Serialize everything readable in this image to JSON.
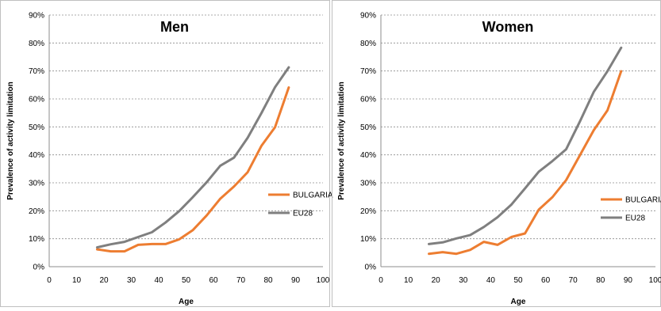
{
  "chart_data": [
    {
      "type": "line",
      "title": "Men",
      "xlabel": "Age",
      "ylabel": "Prevalence of activity limitation",
      "xlim": [
        0,
        100
      ],
      "ylim": [
        0,
        90
      ],
      "xticks": [
        0,
        10,
        20,
        30,
        40,
        50,
        60,
        70,
        80,
        90,
        100
      ],
      "yticks": [
        0,
        10,
        20,
        30,
        40,
        50,
        60,
        70,
        80,
        90
      ],
      "ytick_labels": [
        "0%",
        "10%",
        "20%",
        "30%",
        "40%",
        "50%",
        "60%",
        "70%",
        "80%",
        "90%"
      ],
      "grid": true,
      "legend": "right",
      "series": [
        {
          "name": "BULGARIA",
          "color": "#ED7D31",
          "x": [
            17.5,
            22.5,
            27.5,
            32.5,
            37.5,
            42.5,
            47.5,
            52.5,
            57.5,
            62.5,
            67.5,
            72.5,
            77.5,
            82.5,
            87.5
          ],
          "y": [
            6.2,
            5.5,
            5.5,
            7.8,
            8.1,
            8.1,
            9.8,
            13.1,
            18.3,
            24.3,
            28.7,
            33.8,
            43.2,
            49.9,
            64.1
          ]
        },
        {
          "name": "EU28",
          "color": "#7F7F7F",
          "x": [
            17.5,
            22.5,
            27.5,
            32.5,
            37.5,
            42.5,
            47.5,
            52.5,
            57.5,
            62.5,
            67.5,
            72.5,
            77.5,
            82.5,
            87.5
          ],
          "y": [
            6.9,
            8.0,
            8.9,
            10.6,
            12.3,
            15.8,
            19.9,
            24.9,
            30.2,
            36.1,
            39.0,
            46.1,
            54.9,
            64.2,
            71.3
          ]
        }
      ]
    },
    {
      "type": "line",
      "title": "Women",
      "xlabel": "Age",
      "ylabel": "Prevalence of activity limitation",
      "xlim": [
        0,
        100
      ],
      "ylim": [
        0,
        90
      ],
      "xticks": [
        0,
        10,
        20,
        30,
        40,
        50,
        60,
        70,
        80,
        90,
        100
      ],
      "yticks": [
        0,
        10,
        20,
        30,
        40,
        50,
        60,
        70,
        80,
        90
      ],
      "ytick_labels": [
        "0%",
        "10%",
        "20%",
        "30%",
        "40%",
        "50%",
        "60%",
        "70%",
        "80%",
        "90%"
      ],
      "grid": true,
      "legend": "right",
      "series": [
        {
          "name": "BULGARIA",
          "color": "#ED7D31",
          "x": [
            17.5,
            22.5,
            27.5,
            32.5,
            37.5,
            42.5,
            47.5,
            52.5,
            57.5,
            62.5,
            67.5,
            72.5,
            77.5,
            82.5,
            87.5
          ],
          "y": [
            4.6,
            5.2,
            4.6,
            6.0,
            8.9,
            7.8,
            10.6,
            11.9,
            20.4,
            24.9,
            31.0,
            39.9,
            48.8,
            55.9,
            69.9
          ]
        },
        {
          "name": "EU28",
          "color": "#7F7F7F",
          "x": [
            17.5,
            22.5,
            27.5,
            32.5,
            37.5,
            42.5,
            47.5,
            52.5,
            57.5,
            62.5,
            67.5,
            72.5,
            77.5,
            82.5,
            87.5
          ],
          "y": [
            8.1,
            8.7,
            10.1,
            11.3,
            14.2,
            17.7,
            22.2,
            28.0,
            34.0,
            37.8,
            42.0,
            52.0,
            62.5,
            69.9,
            78.3
          ]
        }
      ]
    }
  ]
}
